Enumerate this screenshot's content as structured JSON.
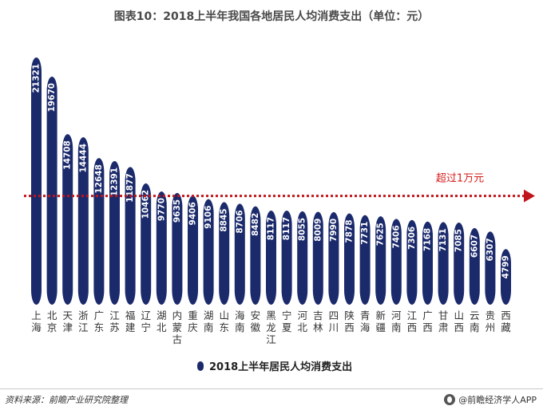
{
  "title": "图表10：2018上半年我国各地居民人均消费支出（单位：元）",
  "chart_data": {
    "type": "bar",
    "title": "图表10：2018上半年我国各地居民人均消费支出（单位：元）",
    "categories": [
      "上海",
      "北京",
      "天津",
      "浙江",
      "广东",
      "江苏",
      "福建",
      "辽宁",
      "湖北",
      "内蒙古",
      "重庆",
      "湖南",
      "山东",
      "海南",
      "安徽",
      "黑龙江",
      "宁夏",
      "河北",
      "吉林",
      "四川",
      "陕西",
      "青海",
      "新疆",
      "河南",
      "江西",
      "广西",
      "甘肃",
      "山西",
      "云南",
      "贵州",
      "西藏"
    ],
    "series": [
      {
        "name": "2018上半年居民人均消费支出",
        "values": [
          21321,
          19670,
          14708,
          14444,
          12648,
          12391,
          11877,
          10462,
          9770,
          9635,
          9406,
          9106,
          8845,
          8706,
          8482,
          8117,
          8117,
          8055,
          8009,
          7990,
          7878,
          7731,
          7625,
          7406,
          7306,
          7168,
          7131,
          7085,
          6607,
          6307,
          4799
        ]
      }
    ],
    "ylim": [
      0,
      21321
    ],
    "grid": false,
    "legend": "bottom-center",
    "reference_line": {
      "value": 10000,
      "label": "超过1万元"
    },
    "colors": {
      "bar": "#1b2a6b",
      "reference": "#c0151b",
      "annotation": "#d61b1b"
    }
  },
  "footer": {
    "source": "资料来源：前瞻产业研究院整理",
    "brand": "@前瞻经济学人APP"
  }
}
